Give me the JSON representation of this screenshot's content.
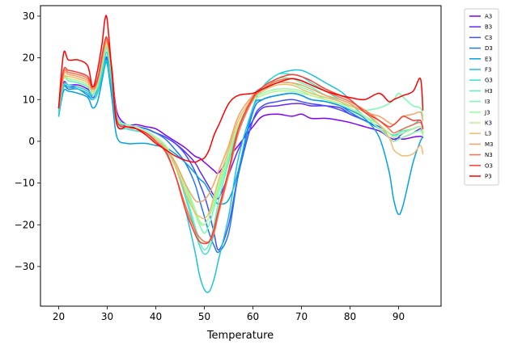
{
  "chart_data": {
    "type": "line",
    "title": "",
    "xlabel": "Temperature",
    "ylabel": "",
    "xlim": [
      16.25,
      98.75
    ],
    "ylim": [
      -39.5,
      32.5
    ],
    "xticks": [
      20,
      30,
      40,
      50,
      60,
      70,
      80,
      90
    ],
    "yticks": [
      -30,
      -20,
      -10,
      0,
      10,
      20,
      30
    ],
    "grid": false,
    "legend_position": "outside-right",
    "x": [
      20,
      21,
      22,
      24,
      26,
      27,
      28,
      29,
      29.5,
      30,
      31,
      32,
      34,
      36,
      38,
      40,
      42,
      44,
      46,
      48,
      49,
      50,
      51,
      52,
      53,
      55,
      57,
      60,
      62,
      65,
      68,
      70,
      72,
      75,
      78,
      80,
      83,
      86,
      88,
      89,
      90,
      91,
      93,
      94.5,
      95
    ],
    "series": [
      {
        "name": "A3",
        "color": "#7f00ff",
        "values": [
          8,
          14,
          13.5,
          13.5,
          12.5,
          11.5,
          13,
          17,
          19,
          20,
          16,
          7,
          4,
          4,
          3.5,
          3,
          1.5,
          0,
          -1.5,
          -3.5,
          -4,
          -5,
          -6,
          -7,
          -7.5,
          -4,
          -1,
          3.5,
          6,
          6.5,
          6,
          6.5,
          5.5,
          5.5,
          5,
          4.5,
          3.5,
          2.5,
          1,
          0.5,
          0.8,
          0.5,
          1,
          1.2,
          1
        ]
      },
      {
        "name": "B3",
        "color": "#6129fe",
        "values": [
          8,
          13,
          13,
          13,
          12,
          11,
          12.5,
          16,
          18.5,
          19.5,
          15,
          6,
          3.5,
          3.5,
          3,
          2,
          1,
          -0.5,
          -2.5,
          -5,
          -7,
          -9,
          -11,
          -13,
          -13.5,
          -8,
          -2,
          5,
          8,
          8.5,
          9,
          9,
          8.5,
          8.5,
          8,
          6.5,
          5,
          3,
          1,
          0,
          0.5,
          1,
          2,
          3,
          2
        ]
      },
      {
        "name": "C3",
        "color": "#4151fa",
        "values": [
          8,
          13.5,
          13.5,
          13,
          12,
          10.5,
          12,
          16.5,
          19,
          20,
          15,
          6,
          4,
          3.5,
          3,
          2,
          1,
          -0.5,
          -3,
          -7,
          -10,
          -13,
          -17,
          -22,
          -26,
          -20,
          -8,
          5,
          8.5,
          9.5,
          10,
          9.5,
          9,
          8.5,
          7.5,
          6.5,
          5,
          3,
          1,
          0,
          1,
          2,
          3,
          3.5,
          2
        ]
      },
      {
        "name": "D3",
        "color": "#2079f3",
        "values": [
          7,
          13,
          12.5,
          12.5,
          11,
          10,
          12,
          16,
          19,
          20,
          14.5,
          5,
          4,
          3.5,
          3,
          2,
          0.5,
          -2,
          -5,
          -10,
          -14,
          -18,
          -22,
          -25,
          -26.5,
          -22,
          -8,
          7,
          10,
          11,
          11.5,
          11,
          10,
          9.5,
          8.5,
          7,
          5,
          3.5,
          2,
          1,
          1.5,
          2,
          3,
          3.5,
          2
        ]
      },
      {
        "name": "E3",
        "color": "#01a0e8",
        "values": [
          6,
          12,
          12,
          11.5,
          10.5,
          8,
          9.5,
          15,
          18,
          18.5,
          10,
          1,
          -0.5,
          -0.5,
          -0.5,
          -1,
          -1.5,
          -3,
          -5,
          -7.5,
          -9,
          -10,
          -12,
          -14,
          -15,
          -14,
          -7,
          8,
          10,
          11,
          11.5,
          11,
          10,
          9.5,
          8.5,
          7.5,
          5.5,
          1,
          -7,
          -14,
          -17.5,
          -15,
          -5,
          0,
          1
        ]
      },
      {
        "name": "F3",
        "color": "#1dc3dd",
        "values": [
          6,
          13,
          13,
          12.5,
          11.5,
          10,
          11.5,
          16,
          18.5,
          19,
          12,
          4,
          3,
          2.5,
          2,
          0.5,
          -2,
          -8,
          -16,
          -26,
          -32,
          -35.5,
          -36,
          -33,
          -28,
          -18,
          -4,
          8,
          13,
          16,
          17,
          17,
          16,
          14,
          12,
          10,
          7,
          4,
          2,
          1,
          2,
          3,
          4,
          5,
          3
        ]
      },
      {
        "name": "G3",
        "color": "#3ae0cf",
        "values": [
          7,
          13.5,
          13.5,
          13,
          12,
          10,
          12,
          17,
          20,
          21,
          14,
          4,
          3,
          2.5,
          2,
          0.5,
          -1.5,
          -6,
          -13,
          -21,
          -25,
          -27,
          -26,
          -22,
          -16,
          -7,
          3,
          11,
          13,
          16,
          16,
          15.5,
          14,
          12,
          10,
          9,
          6,
          4,
          2,
          1.5,
          2,
          3,
          4,
          5,
          3
        ]
      },
      {
        "name": "H3",
        "color": "#59f3c1",
        "values": [
          8,
          15,
          14.5,
          14,
          13,
          11,
          13,
          18,
          21,
          22,
          15,
          5,
          3.5,
          3,
          2,
          0.5,
          -1.5,
          -6,
          -12,
          -20,
          -24,
          -26,
          -24.5,
          -20,
          -14,
          -5,
          3,
          10,
          12,
          15,
          15,
          14,
          13,
          11,
          9.5,
          8,
          6,
          3,
          2,
          1,
          2,
          2.5,
          3,
          3.5,
          2
        ]
      },
      {
        "name": "I3",
        "color": "#77fdb1",
        "values": [
          8,
          15.5,
          15,
          14.5,
          13.5,
          11.5,
          13.5,
          18.5,
          21.5,
          22.5,
          16,
          6,
          4,
          3.5,
          2.5,
          1,
          -1,
          -5,
          -10,
          -17,
          -20,
          -22,
          -20,
          -16,
          -12,
          -4,
          4,
          10,
          12,
          14,
          14,
          13,
          12,
          10,
          9,
          8.5,
          7.5,
          8,
          9,
          10,
          11.5,
          10.5,
          8.5,
          8,
          6
        ]
      },
      {
        "name": "J3",
        "color": "#95fea0",
        "values": [
          8,
          15.5,
          15,
          14.5,
          13.5,
          11.5,
          13.5,
          19,
          22,
          23,
          16,
          5.5,
          4,
          3.5,
          2.5,
          1,
          -1,
          -5,
          -10,
          -16,
          -19,
          -20,
          -18,
          -15,
          -11,
          -3,
          4,
          10,
          11.5,
          12.5,
          12.5,
          12,
          11,
          10,
          9,
          8,
          6,
          3,
          1,
          0,
          0.5,
          1,
          2,
          2.5,
          1.5
        ]
      },
      {
        "name": "K3",
        "color": "#b2f68d",
        "values": [
          8,
          15,
          15,
          14.5,
          13.5,
          11.5,
          13.5,
          19,
          22,
          23,
          16,
          5,
          3.5,
          3,
          2,
          0.5,
          -1.5,
          -5.5,
          -11,
          -17,
          -19.5,
          -20,
          -18,
          -14,
          -10,
          -3,
          4,
          9.5,
          11,
          12,
          12,
          11.5,
          11,
          10,
          9,
          8,
          6,
          4,
          2,
          1,
          1.5,
          2,
          3,
          3.5,
          2
        ]
      },
      {
        "name": "L3",
        "color": "#f3ba6c",
        "values": [
          8,
          15,
          15.5,
          15,
          14,
          12,
          14,
          19.5,
          22.5,
          23.5,
          16,
          5,
          3.5,
          3,
          2,
          0.5,
          -1.5,
          -6,
          -12,
          -17,
          -18,
          -18.5,
          -17,
          -13,
          -9,
          -2,
          5,
          10.5,
          12,
          13.5,
          13.5,
          12.5,
          11.5,
          10.5,
          9.5,
          8.5,
          7,
          4,
          1,
          -2,
          -3,
          -3.5,
          -3,
          -1,
          -3
        ]
      },
      {
        "name": "M3",
        "color": "#f7a162",
        "values": [
          8,
          16,
          16,
          15.5,
          14.5,
          12.5,
          14.5,
          20,
          23,
          24,
          16.5,
          5,
          3.5,
          3,
          2,
          0,
          -2,
          -5,
          -10,
          -14,
          -14.5,
          -14,
          -12.5,
          -10,
          -7,
          -1,
          6,
          11,
          12.5,
          14,
          14,
          13.5,
          12.5,
          11,
          10,
          9,
          7,
          6,
          4.5,
          4,
          5,
          6,
          6.5,
          7,
          5
        ]
      },
      {
        "name": "N3",
        "color": "#fe6e4e",
        "values": [
          8,
          16.5,
          16.5,
          16,
          15,
          12.5,
          14.5,
          20.5,
          23.5,
          24.5,
          17,
          5,
          3.5,
          3,
          2,
          0,
          -2.5,
          -8,
          -15,
          -21,
          -23,
          -24,
          -24,
          -22,
          -17,
          -8,
          2,
          10,
          12.5,
          14.5,
          15,
          14.5,
          13.5,
          12,
          10.5,
          9.5,
          7.5,
          5,
          3,
          2,
          2.5,
          3,
          4,
          4.5,
          3
        ]
      },
      {
        "name": "O3",
        "color": "#fe3c2f",
        "values": [
          8,
          17,
          17,
          16.5,
          15.5,
          13,
          15,
          21,
          24,
          24.5,
          17,
          5,
          3.5,
          3,
          2,
          0,
          -2.5,
          -8,
          -16,
          -22,
          -24,
          -24.5,
          -24,
          -21,
          -16,
          -7,
          3,
          10.5,
          13,
          15,
          16,
          15.5,
          14.5,
          12.5,
          11,
          10,
          7,
          5,
          3.5,
          4,
          5,
          6,
          5,
          5,
          3
        ]
      },
      {
        "name": "P3",
        "color": "#ff0000",
        "values": [
          8,
          21,
          19.5,
          19.5,
          18,
          13,
          17,
          24,
          29,
          29,
          16,
          4,
          3.5,
          3,
          1.5,
          -0.5,
          -2,
          -3.5,
          -4.5,
          -5,
          -4.5,
          -4,
          -2,
          1.5,
          4,
          9,
          11,
          11.5,
          12.5,
          14,
          15,
          14.5,
          13.5,
          12,
          11,
          10.5,
          10,
          11.5,
          9.5,
          10,
          10.5,
          11,
          12,
          15,
          7.5
        ]
      }
    ]
  }
}
